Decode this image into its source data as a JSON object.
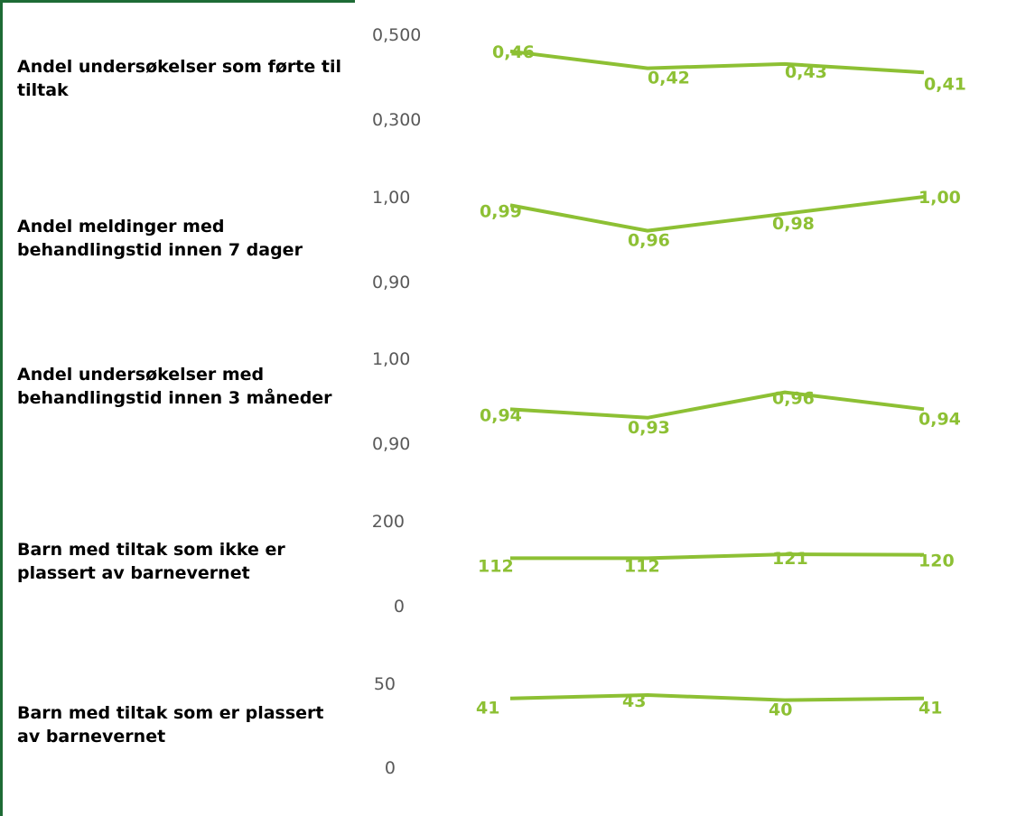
{
  "colors": {
    "line": "#8DC034",
    "frame": "#1E6B35",
    "tick": "#595959",
    "label": "#000000"
  },
  "chart_data": [
    {
      "type": "line",
      "title": "Andel undersøkelser som førte til tiltak",
      "values": [
        0.46,
        0.42,
        0.43,
        0.41
      ],
      "value_labels": [
        "0,46",
        "0,42",
        "0,43",
        "0,41"
      ],
      "ylim": [
        0.3,
        0.5
      ],
      "ytick_labels": [
        "0,500",
        "0,300"
      ]
    },
    {
      "type": "line",
      "title": "Andel meldinger med behandlingstid innen 7 dager",
      "values": [
        0.99,
        0.96,
        0.98,
        1.0
      ],
      "value_labels": [
        "0,99",
        "0,96",
        "0,98",
        "1,00"
      ],
      "ylim": [
        0.9,
        1.0
      ],
      "ytick_labels": [
        "1,00",
        "0,90"
      ]
    },
    {
      "type": "line",
      "title": "Andel undersøkelser med behandlingstid innen 3 måneder",
      "values": [
        0.94,
        0.93,
        0.96,
        0.94
      ],
      "value_labels": [
        "0,94",
        "0,93",
        "0,96",
        "0,94"
      ],
      "ylim": [
        0.9,
        1.0
      ],
      "ytick_labels": [
        "1,00",
        "0,90"
      ]
    },
    {
      "type": "line",
      "title": "Barn med tiltak som ikke er plassert av barnevernet",
      "values": [
        112,
        112,
        121,
        120
      ],
      "value_labels": [
        "112",
        "112",
        "121",
        "120"
      ],
      "ylim": [
        0,
        200
      ],
      "ytick_labels": [
        "200",
        "0"
      ]
    },
    {
      "type": "line",
      "title": "Barn med tiltak som er plassert av barnevernet",
      "values": [
        41,
        43,
        40,
        41
      ],
      "value_labels": [
        "41",
        "43",
        "40",
        "41"
      ],
      "ylim": [
        0,
        50
      ],
      "ytick_labels": [
        "50",
        "0"
      ]
    }
  ]
}
